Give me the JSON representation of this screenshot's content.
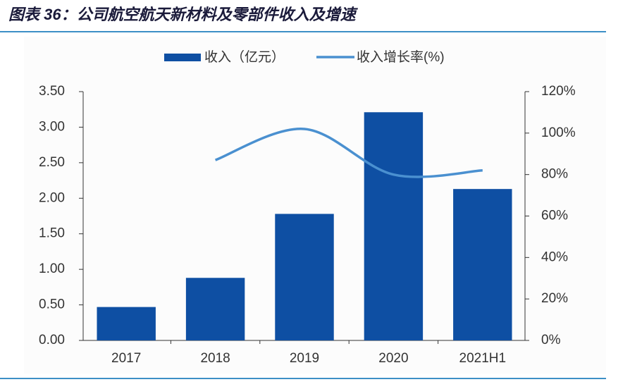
{
  "chart_data": {
    "type": "bar",
    "title": "图表 36：公司航空航天新材料及零部件收入及增速",
    "categories": [
      "2017",
      "2018",
      "2019",
      "2020",
      "2021H1"
    ],
    "series": [
      {
        "name": "收入（亿元）",
        "type": "bar",
        "color": "#0e4fa3",
        "values": [
          0.47,
          0.88,
          1.78,
          3.21,
          2.13
        ]
      },
      {
        "name": "收入增长率(%)",
        "type": "line",
        "axis": "y2",
        "color": "#4a90d0",
        "values": [
          null,
          87,
          102,
          80,
          82
        ]
      }
    ],
    "ylim": [
      0,
      3.5
    ],
    "yticks": [
      {
        "value": 0,
        "label": "0.00"
      },
      {
        "value": 0.5,
        "label": "0.50"
      },
      {
        "value": 1,
        "label": "1.00"
      },
      {
        "value": 1.5,
        "label": "1.50"
      },
      {
        "value": 2,
        "label": "2.00"
      },
      {
        "value": 2.5,
        "label": "2.50"
      },
      {
        "value": 3,
        "label": "3.00"
      },
      {
        "value": 3.5,
        "label": "3.50"
      }
    ],
    "y2lim": [
      0,
      120
    ],
    "y2ticks": [
      {
        "value": 0,
        "label": "0%"
      },
      {
        "value": 20,
        "label": "20%"
      },
      {
        "value": 40,
        "label": "40%"
      },
      {
        "value": 60,
        "label": "60%"
      },
      {
        "value": 80,
        "label": "80%"
      },
      {
        "value": 100,
        "label": "100%"
      },
      {
        "value": 120,
        "label": "120%"
      }
    ],
    "legend": "top"
  }
}
